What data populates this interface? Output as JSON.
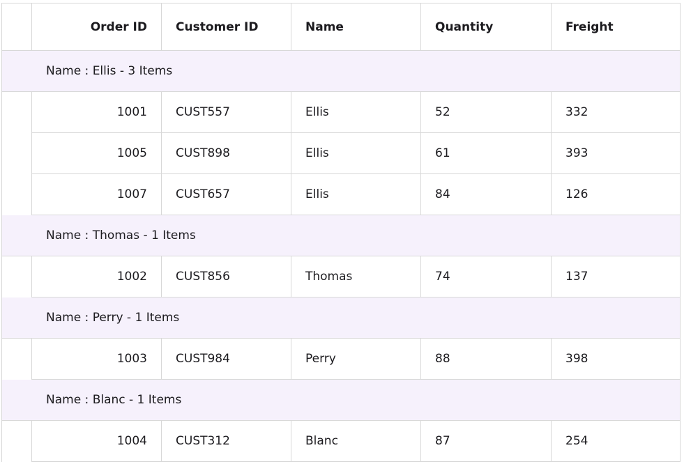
{
  "columns": {
    "order_id": "Order ID",
    "customer_id": "Customer ID",
    "name": "Name",
    "quantity": "Quantity",
    "freight": "Freight"
  },
  "groups": [
    {
      "caption": "Name : Ellis - 3 Items",
      "rows": [
        {
          "order_id": "1001",
          "customer_id": "CUST557",
          "name": "Ellis",
          "quantity": "52",
          "freight": "332"
        },
        {
          "order_id": "1005",
          "customer_id": "CUST898",
          "name": "Ellis",
          "quantity": "61",
          "freight": "393"
        },
        {
          "order_id": "1007",
          "customer_id": "CUST657",
          "name": "Ellis",
          "quantity": "84",
          "freight": "126"
        }
      ]
    },
    {
      "caption": "Name : Thomas - 1 Items",
      "rows": [
        {
          "order_id": "1002",
          "customer_id": "CUST856",
          "name": "Thomas",
          "quantity": "74",
          "freight": "137"
        }
      ]
    },
    {
      "caption": "Name : Perry - 1 Items",
      "rows": [
        {
          "order_id": "1003",
          "customer_id": "CUST984",
          "name": "Perry",
          "quantity": "88",
          "freight": "398"
        }
      ]
    },
    {
      "caption": "Name : Blanc - 1 Items",
      "rows": [
        {
          "order_id": "1004",
          "customer_id": "CUST312",
          "name": "Blanc",
          "quantity": "87",
          "freight": "254"
        }
      ]
    }
  ]
}
